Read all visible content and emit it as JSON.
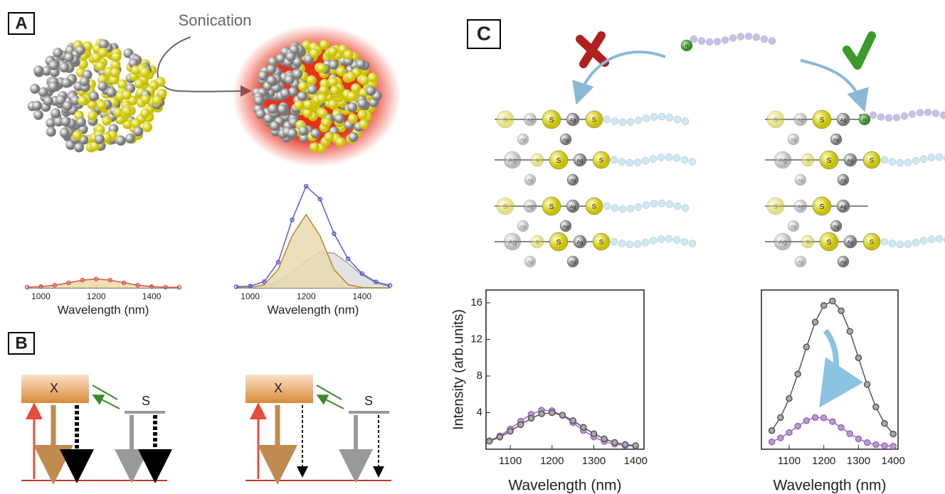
{
  "panel_labels": [
    "A",
    "B",
    "C"
  ],
  "sonication": "Sonication",
  "energy_levels": {
    "exciton": "X",
    "surface": "S"
  },
  "atoms": {
    "sulfur": "S",
    "silver": "Ag",
    "nitrogen": "N"
  },
  "chart_data": [
    {
      "type": "line",
      "xlabel": "Wavelength (nm)",
      "x": [
        950,
        1000,
        1050,
        1100,
        1150,
        1200,
        1250,
        1300,
        1350,
        1400,
        1450,
        1500
      ],
      "series": [
        {
          "color": "#d9534f",
          "fill": "#eadba6",
          "markers": true,
          "values": [
            0.07,
            0.12,
            0.25,
            0.48,
            0.74,
            0.85,
            0.74,
            0.48,
            0.25,
            0.12,
            0.07,
            0.05
          ]
        }
      ],
      "xlim": [
        950,
        1500
      ],
      "xticks": [
        1000,
        1200,
        1400
      ],
      "ylim": [
        0,
        10.5
      ]
    },
    {
      "type": "line",
      "xlabel": "Wavelength (nm)",
      "x": [
        950,
        1000,
        1050,
        1100,
        1150,
        1200,
        1250,
        1300,
        1350,
        1400,
        1450,
        1500
      ],
      "series": [
        {
          "color": "#a0a0a0",
          "fill": "#dedede",
          "values": [
            0.01,
            0.04,
            0.18,
            0.59,
            1.44,
            2.59,
            3.41,
            3.31,
            2.36,
            1.23,
            0.47,
            0.13
          ]
        },
        {
          "color": "#b8892a",
          "fill": "#e9d9b0",
          "values": [
            0,
            0.03,
            0.31,
            1.75,
            4.95,
            7,
            4.95,
            1.75,
            0.31,
            0.03,
            0,
            0
          ]
        },
        {
          "color": "#5a5ad6",
          "markers": true,
          "values": [
            0.11,
            0.17,
            0.59,
            2.44,
            6.49,
            9.69,
            8.46,
            5.16,
            2.77,
            1.36,
            0.57,
            0.23
          ]
        }
      ],
      "xlim": [
        950,
        1500
      ],
      "xticks": [
        1000,
        1200,
        1400
      ],
      "ylim": [
        0,
        10.5
      ]
    },
    {
      "type": "line",
      "xlabel": "Wavelength (nm)",
      "ylabel": "Intensity (arb.units)",
      "frame": true,
      "x": [
        1050,
        1075,
        1100,
        1125,
        1150,
        1175,
        1200,
        1225,
        1250,
        1275,
        1300,
        1325,
        1350,
        1375,
        1400
      ],
      "series": [
        {
          "color": "#a35ee0",
          "markers": true,
          "values": [
            0.92,
            1.46,
            2.21,
            3.07,
            3.83,
            4.26,
            4.21,
            3.7,
            2.9,
            2.05,
            1.34,
            0.84,
            0.55,
            0.4,
            0.34
          ]
        },
        {
          "color": "#555555",
          "markers": true,
          "values": [
            0.87,
            1.33,
            1.96,
            2.69,
            3.39,
            3.87,
            3.99,
            3.72,
            3.13,
            2.39,
            1.69,
            1.13,
            0.74,
            0.51,
            0.39
          ]
        }
      ],
      "xlim": [
        1042,
        1420
      ],
      "xticks": [
        1100,
        1200,
        1300,
        1400
      ],
      "ylim": [
        0,
        17.4
      ],
      "yticks": [
        4,
        8,
        12,
        16
      ]
    },
    {
      "type": "line",
      "xlabel": "Wavelength (nm)",
      "frame": true,
      "x": [
        1050,
        1075,
        1100,
        1125,
        1150,
        1175,
        1200,
        1225,
        1250,
        1275,
        1300,
        1325,
        1350,
        1375,
        1400
      ],
      "series": [
        {
          "color": "#555555",
          "markers": true,
          "values": [
            2.04,
            3.47,
            5.54,
            8.21,
            11.18,
            13.89,
            15.71,
            16.2,
            15.13,
            12.88,
            9.99,
            7.08,
            4.62,
            2.82,
            1.66
          ]
        },
        {
          "color": "#a35ee0",
          "markers": true,
          "values": [
            0.8,
            1.23,
            1.83,
            2.52,
            3.12,
            3.47,
            3.43,
            3.02,
            2.38,
            1.7,
            1.13,
            0.73,
            0.5,
            0.38,
            0.33
          ]
        }
      ],
      "xlim": [
        1020,
        1414
      ],
      "xticks": [
        1100,
        1200,
        1300,
        1400
      ],
      "ylim": [
        0,
        17.4
      ]
    }
  ]
}
